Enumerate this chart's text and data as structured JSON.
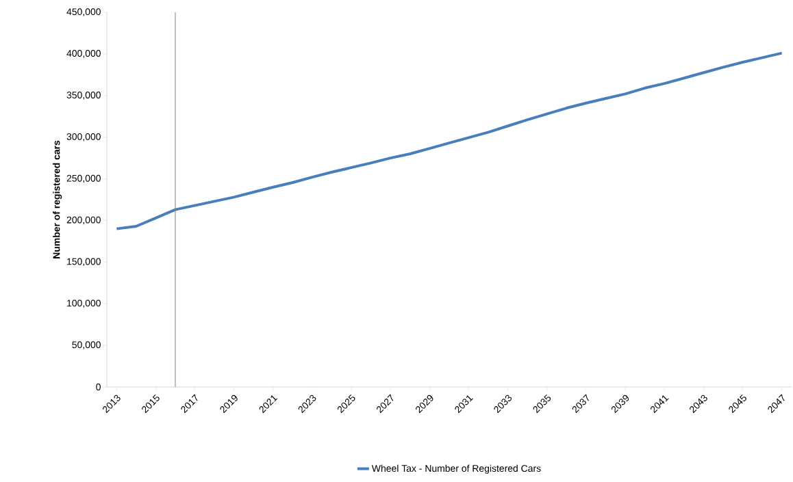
{
  "chart_data": {
    "type": "line",
    "ylabel": "Number of registered cars",
    "x": [
      2013,
      2014,
      2015,
      2016,
      2017,
      2018,
      2019,
      2020,
      2021,
      2022,
      2023,
      2024,
      2025,
      2026,
      2027,
      2028,
      2029,
      2030,
      2031,
      2032,
      2033,
      2034,
      2035,
      2036,
      2037,
      2038,
      2039,
      2040,
      2041,
      2042,
      2043,
      2044,
      2045,
      2046,
      2047
    ],
    "series": [
      {
        "name": "Wheel Tax - Number of Registered Cars",
        "color": "#4a7ebb",
        "values": [
          190000,
          193000,
          203000,
          213000,
          218000,
          223000,
          228000,
          234000,
          240000,
          245500,
          252000,
          258000,
          263500,
          269000,
          275000,
          280000,
          286500,
          293000,
          299500,
          306000,
          313500,
          321000,
          328000,
          335000,
          341000,
          346500,
          352000,
          359000,
          364500,
          371000,
          377500,
          384000,
          390000,
          395500,
          401000
        ]
      }
    ],
    "xlim": [
      2012.5,
      2047.5
    ],
    "xticks": [
      2013,
      2015,
      2017,
      2019,
      2021,
      2023,
      2025,
      2027,
      2029,
      2031,
      2033,
      2035,
      2037,
      2039,
      2041,
      2043,
      2045,
      2047
    ],
    "ylim": [
      0,
      450000
    ],
    "yticks": [
      {
        "value": 0,
        "label": "0"
      },
      {
        "value": 50000,
        "label": "50,000"
      },
      {
        "value": 100000,
        "label": "100,000"
      },
      {
        "value": 150000,
        "label": "150,000"
      },
      {
        "value": 200000,
        "label": "200,000"
      },
      {
        "value": 250000,
        "label": "250,000"
      },
      {
        "value": 300000,
        "label": "300,000"
      },
      {
        "value": 350000,
        "label": "350,000"
      },
      {
        "value": 400000,
        "label": "400,000"
      },
      {
        "value": 450000,
        "label": "450,000"
      }
    ],
    "ref_lines": [
      {
        "axis": "x",
        "value": 2016,
        "color": "#808080"
      }
    ],
    "grid": false,
    "legend": "bottom",
    "marker": "none",
    "line_style": "solid"
  }
}
